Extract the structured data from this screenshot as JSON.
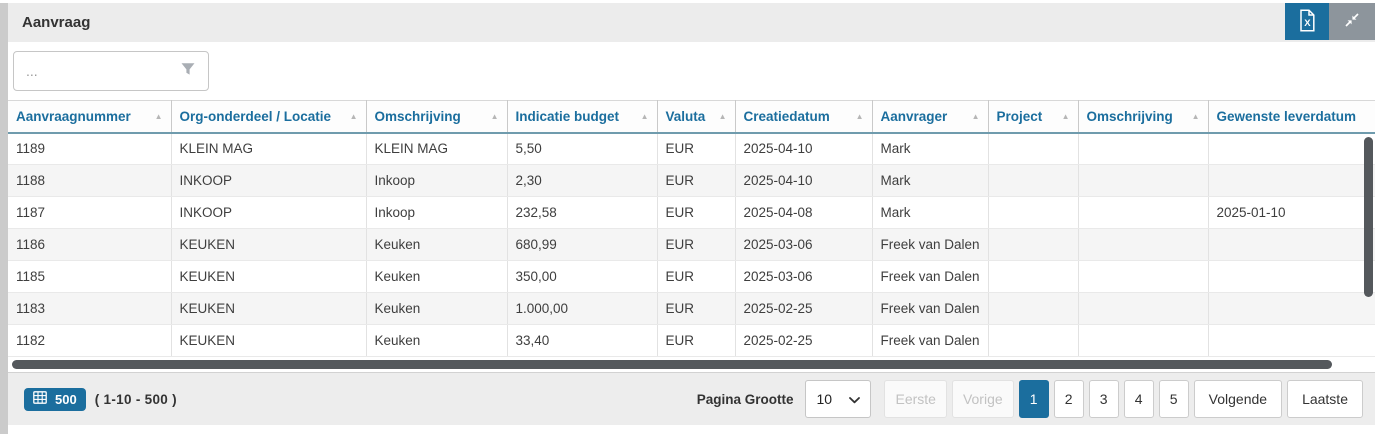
{
  "panel": {
    "title": "Aanvraag"
  },
  "toolbar": {
    "export_excel_button": "export-to-excel",
    "collapse_button": "collapse-panel"
  },
  "filter": {
    "placeholder": "..."
  },
  "icons": {
    "sort_ascending_glyph": "▲",
    "export_excel": "excel-file-icon",
    "collapse": "collapse-arrows-icon",
    "filter": "funnel-icon",
    "badge": "table-grid-icon",
    "page_size": "chevron-down-icon"
  },
  "colors": {
    "accent": "#1b6e9e",
    "gray_button": "#8d959c",
    "header_border": "#6f9bad",
    "scrollbar": "#54585c"
  },
  "table": {
    "columns": [
      {
        "label": "Aanvraagnummer",
        "sortable": true
      },
      {
        "label": "Org-onderdeel / Locatie",
        "sortable": true
      },
      {
        "label": "Omschrijving",
        "sortable": true
      },
      {
        "label": "Indicatie budget",
        "sortable": true
      },
      {
        "label": "Valuta",
        "sortable": true
      },
      {
        "label": "Creatiedatum",
        "sortable": true
      },
      {
        "label": "Aanvrager",
        "sortable": true
      },
      {
        "label": "Project",
        "sortable": true
      },
      {
        "label": "Omschrijving",
        "sortable": true
      },
      {
        "label": "Gewenste leverdatum",
        "sortable": false
      }
    ],
    "rows": [
      [
        "1189",
        "KLEIN MAG",
        "KLEIN MAG",
        "5,50",
        "EUR",
        "2025-04-10",
        "Mark",
        "",
        "",
        ""
      ],
      [
        "1188",
        "INKOOP",
        "Inkoop",
        "2,30",
        "EUR",
        "2025-04-10",
        "Mark",
        "",
        "",
        ""
      ],
      [
        "1187",
        "INKOOP",
        "Inkoop",
        "232,58",
        "EUR",
        "2025-04-08",
        "Mark",
        "",
        "",
        "2025-01-10"
      ],
      [
        "1186",
        "KEUKEN",
        "Keuken",
        "680,99",
        "EUR",
        "2025-03-06",
        "Freek van Dalen",
        "",
        "",
        ""
      ],
      [
        "1185",
        "KEUKEN",
        "Keuken",
        "350,00",
        "EUR",
        "2025-03-06",
        "Freek van Dalen",
        "",
        "",
        ""
      ],
      [
        "1183",
        "KEUKEN",
        "Keuken",
        "1.000,00",
        "EUR",
        "2025-02-25",
        "Freek van Dalen",
        "",
        "",
        ""
      ],
      [
        "1182",
        "KEUKEN",
        "Keuken",
        "33,40",
        "EUR",
        "2025-02-25",
        "Freek van Dalen",
        "",
        "",
        ""
      ]
    ]
  },
  "footer": {
    "total_badge": "500",
    "range_text": "( 1-10 - 500 )",
    "page_size_label": "Pagina Grootte",
    "page_size_value": "10",
    "pagination": {
      "first": "Eerste",
      "prev": "Vorige",
      "pages": [
        "1",
        "2",
        "3",
        "4",
        "5"
      ],
      "active_page": "1",
      "next": "Volgende",
      "last": "Laatste"
    }
  }
}
